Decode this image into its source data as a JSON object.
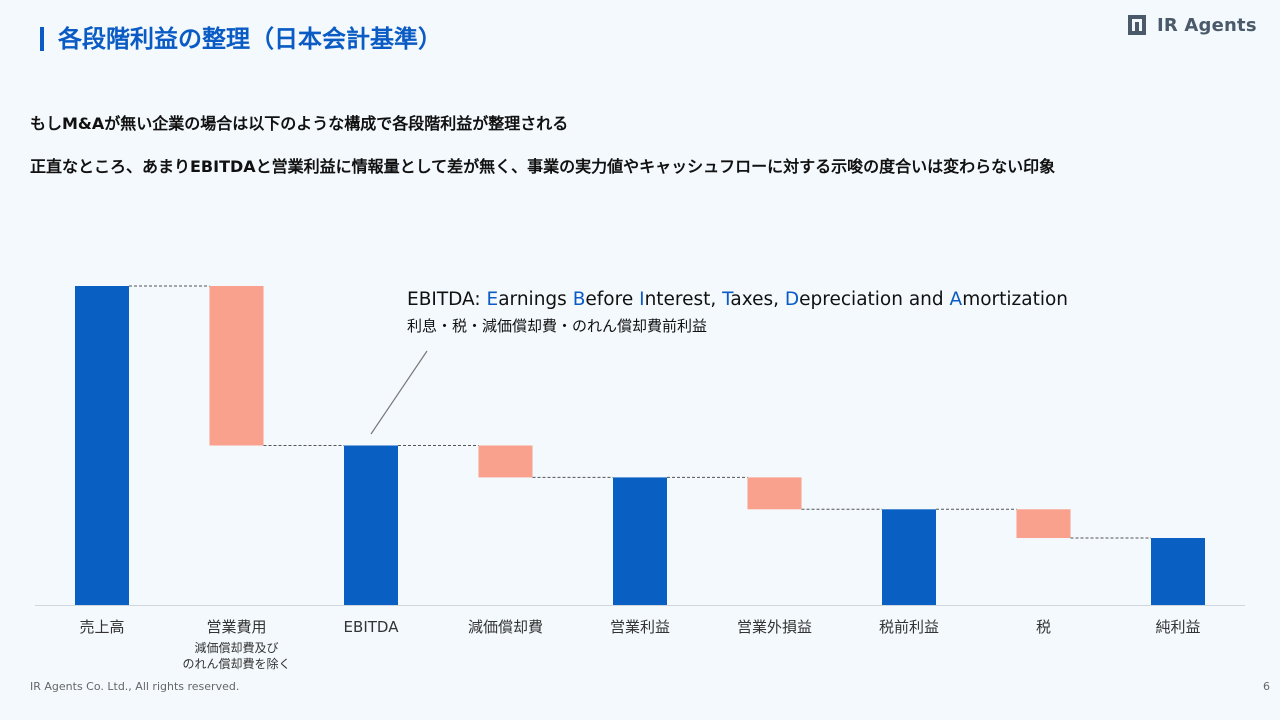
{
  "header": {
    "title": "各段階利益の整理（日本会計基準）",
    "logo_text": "IR Agents"
  },
  "body": {
    "line1": "もしM&Aが無い企業の場合は以下のような構成で各段階利益が整理される",
    "line2": "正直なところ、あまりEBITDAと営業利益に情報量として差が無く、事業の実力値やキャッシュフローに対する示唆の度合いは変わらない印象"
  },
  "annotation": {
    "parts": [
      {
        "text": "EBITDA: ",
        "highlight": false
      },
      {
        "text": "E",
        "highlight": true
      },
      {
        "text": "arnings ",
        "highlight": false
      },
      {
        "text": "B",
        "highlight": true
      },
      {
        "text": "efore ",
        "highlight": false
      },
      {
        "text": "I",
        "highlight": true
      },
      {
        "text": "nterest, ",
        "highlight": false
      },
      {
        "text": "T",
        "highlight": true
      },
      {
        "text": "axes, ",
        "highlight": false
      },
      {
        "text": "D",
        "highlight": true
      },
      {
        "text": "epreciation and ",
        "highlight": false
      },
      {
        "text": "A",
        "highlight": true
      },
      {
        "text": "mortization",
        "highlight": false
      }
    ],
    "subtitle": "利息・税・減価償却費・のれん償却費前利益"
  },
  "chart_data": {
    "type": "bar",
    "subtype": "waterfall",
    "categories": [
      "売上高",
      "営業費用",
      "EBITDA",
      "減価償却費",
      "営業利益",
      "営業外損益",
      "税前利益",
      "税",
      "純利益"
    ],
    "category_sublabels": {
      "営業費用": [
        "減価償却費及び",
        "のれん償却費を除く"
      ]
    },
    "bars": [
      {
        "kind": "total",
        "start": 0,
        "end": 100
      },
      {
        "kind": "decrease",
        "start": 100,
        "end": 50
      },
      {
        "kind": "total",
        "start": 0,
        "end": 50
      },
      {
        "kind": "decrease",
        "start": 50,
        "end": 40
      },
      {
        "kind": "total",
        "start": 0,
        "end": 40
      },
      {
        "kind": "decrease",
        "start": 40,
        "end": 30
      },
      {
        "kind": "total",
        "start": 0,
        "end": 30
      },
      {
        "kind": "decrease",
        "start": 30,
        "end": 21
      },
      {
        "kind": "total",
        "start": 0,
        "end": 21
      }
    ],
    "ylim": [
      0,
      100
    ],
    "grid": false,
    "connectors": true,
    "colors": {
      "total": "#0a60c2",
      "decrease": "#f9a18c",
      "connector": "#555555",
      "axis": "#cfd6de"
    }
  },
  "footer": {
    "copyright": "IR Agents Co. Ltd., All rights reserved.",
    "page": "6"
  }
}
